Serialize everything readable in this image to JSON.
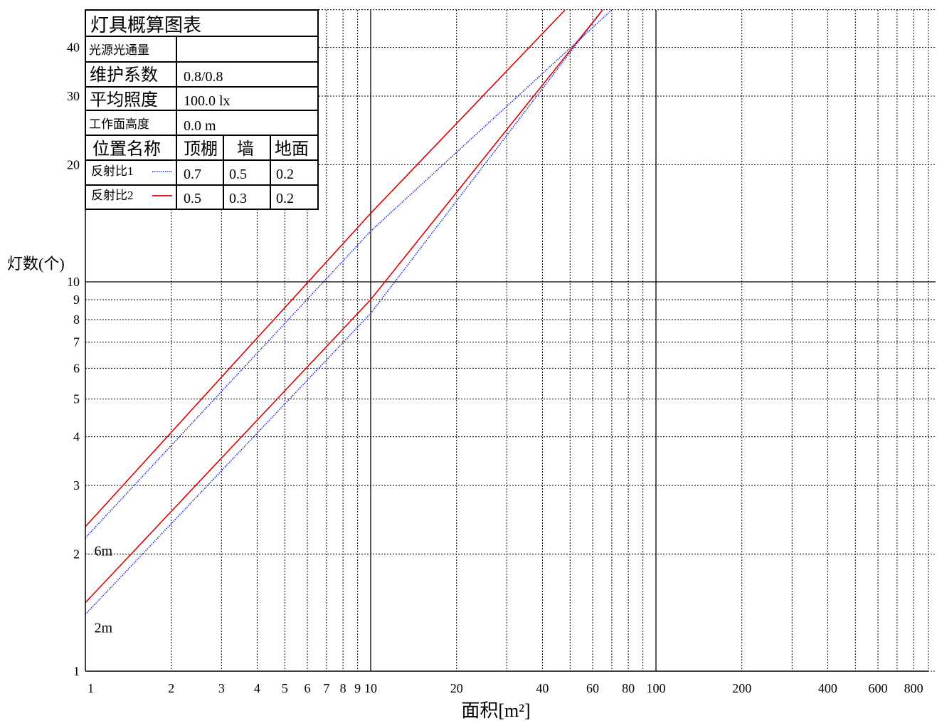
{
  "chart_data": {
    "type": "line",
    "x_scale": "log",
    "y_scale": "log",
    "xlim": [
      1,
      1000
    ],
    "ylim": [
      1,
      50
    ],
    "xlabel": "面积[m²]",
    "ylabel": "灯数(个)",
    "x_ticks": [
      {
        "v": 1,
        "t": "1"
      },
      {
        "v": 2,
        "t": "2"
      },
      {
        "v": 3,
        "t": "3"
      },
      {
        "v": 4,
        "t": "4"
      },
      {
        "v": 5,
        "t": "5"
      },
      {
        "v": 6,
        "t": "6"
      },
      {
        "v": 7,
        "t": "7"
      },
      {
        "v": 8,
        "t": "8"
      },
      {
        "v": 9,
        "t": "9"
      },
      {
        "v": 10,
        "t": "10"
      },
      {
        "v": 20,
        "t": "20"
      },
      {
        "v": 40,
        "t": "40"
      },
      {
        "v": 60,
        "t": "60"
      },
      {
        "v": 80,
        "t": "80"
      },
      {
        "v": 100,
        "t": "100"
      },
      {
        "v": 200,
        "t": "200"
      },
      {
        "v": 400,
        "t": "400"
      },
      {
        "v": 600,
        "t": "600"
      },
      {
        "v": 800,
        "t": "800"
      }
    ],
    "y_ticks": [
      {
        "v": 1,
        "t": "1"
      },
      {
        "v": 2,
        "t": "2"
      },
      {
        "v": 3,
        "t": "3"
      },
      {
        "v": 4,
        "t": "4"
      },
      {
        "v": 5,
        "t": "5"
      },
      {
        "v": 6,
        "t": "6"
      },
      {
        "v": 7,
        "t": "7"
      },
      {
        "v": 8,
        "t": "8"
      },
      {
        "v": 9,
        "t": "9"
      },
      {
        "v": 10,
        "t": "10"
      },
      {
        "v": 20,
        "t": "20"
      },
      {
        "v": 30,
        "t": "30"
      },
      {
        "v": 40,
        "t": "40"
      }
    ],
    "grid": true,
    "series": [
      {
        "curve": "6m",
        "reflectance": 1,
        "color": "#1c2fd8",
        "style": "dotted",
        "x": [
          1,
          10,
          70
        ],
        "y": [
          2.2,
          13.5,
          50
        ]
      },
      {
        "curve": "6m",
        "reflectance": 2,
        "color": "#e00000",
        "style": "solid",
        "x": [
          1,
          10,
          48
        ],
        "y": [
          2.35,
          15,
          50
        ]
      },
      {
        "curve": "2m",
        "reflectance": 1,
        "color": "#1c2fd8",
        "style": "dotted",
        "x": [
          1,
          10,
          65
        ],
        "y": [
          1.4,
          8.3,
          50
        ]
      },
      {
        "curve": "2m",
        "reflectance": 2,
        "color": "#e00000",
        "style": "solid",
        "x": [
          1,
          10,
          65
        ],
        "y": [
          1.5,
          9.0,
          50
        ]
      }
    ],
    "curve_labels": [
      {
        "text": "6m",
        "x": 1.05,
        "y": 2.05
      },
      {
        "text": "2m",
        "x": 1.05,
        "y": 1.3
      }
    ]
  },
  "legend_table": {
    "title": "灯具概算图表",
    "rows": {
      "flux_label": "光源光通量",
      "flux_value": "",
      "maint_label": "维护系数",
      "maint_value": "0.8/0.8",
      "illum_label": "平均照度",
      "illum_value": "100.0 lx",
      "height_label": "工作面高度",
      "height_value": "0.0 m"
    },
    "header": {
      "position": "位置名称",
      "ceiling": "顶棚",
      "wall": "墙",
      "floor": "地面"
    },
    "refl1": {
      "label": "反射比1",
      "ceiling": "0.7",
      "wall": "0.5",
      "floor": "0.2"
    },
    "refl2": {
      "label": "反射比2",
      "ceiling": "0.5",
      "wall": "0.3",
      "floor": "0.2"
    }
  }
}
